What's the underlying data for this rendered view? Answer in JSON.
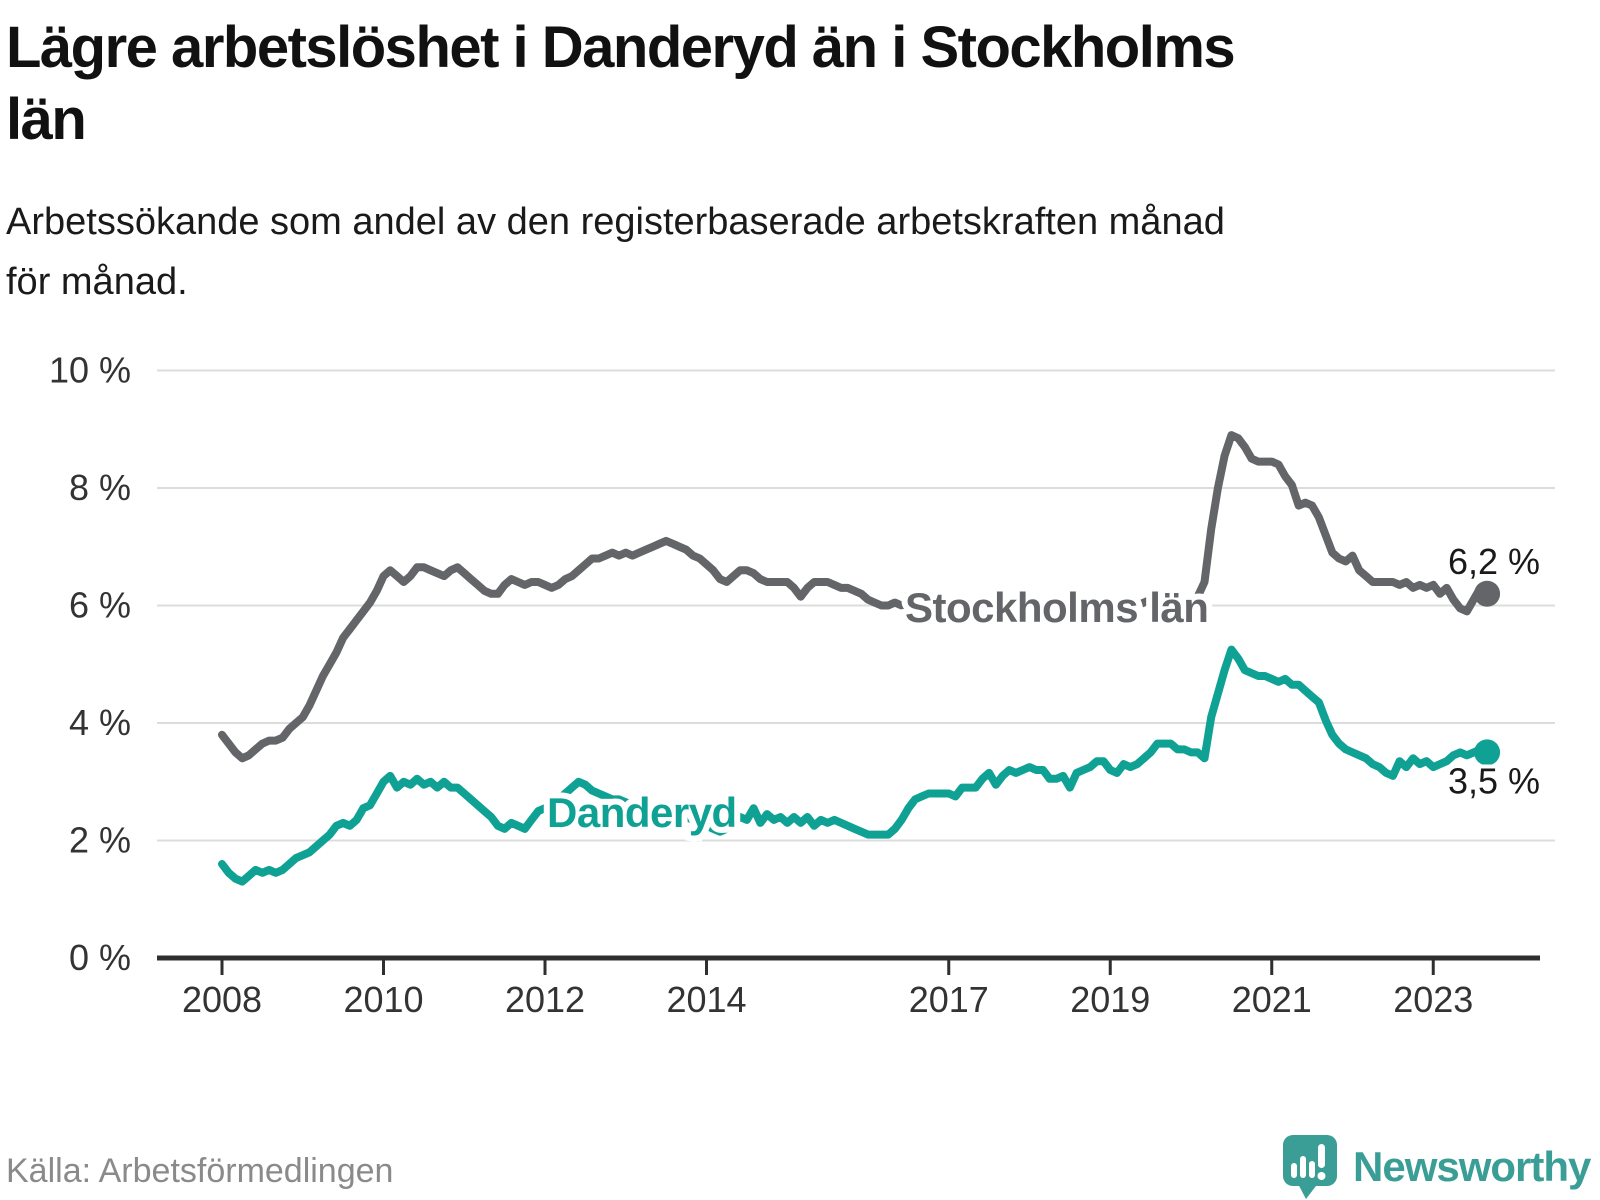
{
  "title": "Lägre arbetslöshet i Danderyd än i Stockholms\nlän",
  "subtitle": "Arbetssökande som andel av den registerbaserade arbetskraften månad\nför månad.",
  "source": "Källa: Arbetsförmedlingen",
  "brand": {
    "name": "Newsworthy",
    "icon": "speech-bubble-bar-chart-icon",
    "color": "#3a9e96"
  },
  "colors": {
    "stockholm_gray": "#636569",
    "danderyd_teal": "#10a195",
    "grid": "#dcdcdc",
    "axis": "#2f2f2f",
    "tick_text": "#333333",
    "value_text": "#1a1a1a",
    "source_gray": "#8a8a8a",
    "brand_teal": "#3a9e96"
  },
  "chart_data": {
    "type": "line",
    "title": "Lägre arbetslöshet i Danderyd än i Stockholms län",
    "subtitle": "Arbetssökande som andel av den registerbaserade arbetskraften månad för månad.",
    "xlabel": "",
    "ylabel": "",
    "y_suffix": " %",
    "ylim": [
      0,
      10
    ],
    "y_ticks": [
      0,
      2,
      4,
      6,
      8,
      10
    ],
    "x_ticks": [
      2008,
      2010,
      2012,
      2014,
      2017,
      2019,
      2021,
      2023
    ],
    "x_start_year": 2008,
    "x_start_month": 1,
    "freq": "monthly",
    "grid": "horizontal",
    "legend_position": "inline-labels",
    "series": [
      {
        "name": "Stockholms län",
        "color": "#636569",
        "end_label": "6,2 %",
        "end_value": 6.2,
        "values": [
          3.8,
          3.65,
          3.5,
          3.4,
          3.45,
          3.55,
          3.65,
          3.7,
          3.7,
          3.75,
          3.9,
          4.0,
          4.1,
          4.3,
          4.55,
          4.8,
          5.0,
          5.2,
          5.45,
          5.6,
          5.75,
          5.9,
          6.05,
          6.25,
          6.5,
          6.6,
          6.5,
          6.4,
          6.5,
          6.65,
          6.65,
          6.6,
          6.55,
          6.5,
          6.6,
          6.65,
          6.55,
          6.45,
          6.35,
          6.25,
          6.2,
          6.2,
          6.35,
          6.45,
          6.4,
          6.35,
          6.4,
          6.4,
          6.35,
          6.3,
          6.35,
          6.45,
          6.5,
          6.6,
          6.7,
          6.8,
          6.8,
          6.85,
          6.9,
          6.85,
          6.9,
          6.85,
          6.9,
          6.95,
          7.0,
          7.05,
          7.1,
          7.05,
          7.0,
          6.95,
          6.85,
          6.8,
          6.7,
          6.6,
          6.45,
          6.4,
          6.5,
          6.6,
          6.6,
          6.55,
          6.45,
          6.4,
          6.4,
          6.4,
          6.4,
          6.3,
          6.15,
          6.3,
          6.4,
          6.4,
          6.4,
          6.35,
          6.3,
          6.3,
          6.25,
          6.2,
          6.1,
          6.05,
          6.0,
          6.0,
          6.05,
          6.0,
          6.0,
          5.95,
          5.95,
          5.95,
          6.0,
          6.0,
          6.0,
          6.0,
          6.0,
          5.95,
          5.95,
          5.95,
          6.0,
          6.0,
          6.0,
          6.0,
          6.0,
          6.05,
          6.05,
          6.0,
          6.0,
          5.95,
          5.9,
          5.9,
          5.95,
          5.95,
          5.9,
          5.9,
          5.9,
          5.95,
          5.95,
          5.95,
          6.0,
          6.0,
          6.0,
          6.05,
          6.1,
          6.1,
          6.1,
          6.1,
          6.1,
          6.1,
          6.1,
          6.15,
          6.4,
          7.3,
          8.0,
          8.55,
          8.9,
          8.85,
          8.7,
          8.5,
          8.45,
          8.45,
          8.45,
          8.4,
          8.2,
          8.05,
          7.7,
          7.75,
          7.7,
          7.5,
          7.2,
          6.9,
          6.8,
          6.75,
          6.85,
          6.6,
          6.5,
          6.4,
          6.4,
          6.4,
          6.4,
          6.35,
          6.4,
          6.3,
          6.35,
          6.3,
          6.35,
          6.2,
          6.3,
          6.1,
          5.95,
          5.9,
          6.1,
          6.3,
          6.2
        ]
      },
      {
        "name": "Danderyd",
        "color": "#10a195",
        "end_label": "3,5 %",
        "end_value": 3.5,
        "values": [
          1.6,
          1.45,
          1.35,
          1.3,
          1.4,
          1.5,
          1.45,
          1.5,
          1.45,
          1.5,
          1.6,
          1.7,
          1.75,
          1.8,
          1.9,
          2.0,
          2.1,
          2.25,
          2.3,
          2.25,
          2.35,
          2.55,
          2.6,
          2.8,
          3.0,
          3.1,
          2.9,
          3.0,
          2.95,
          3.05,
          2.95,
          3.0,
          2.9,
          3.0,
          2.9,
          2.9,
          2.8,
          2.7,
          2.6,
          2.5,
          2.4,
          2.25,
          2.2,
          2.3,
          2.25,
          2.2,
          2.35,
          2.5,
          2.55,
          2.6,
          2.7,
          2.8,
          2.9,
          3.0,
          2.95,
          2.85,
          2.8,
          2.75,
          2.7,
          2.7,
          2.65,
          2.6,
          2.6,
          2.55,
          2.55,
          2.5,
          2.5,
          2.45,
          2.45,
          2.4,
          2.35,
          2.3,
          2.25,
          2.2,
          2.15,
          2.2,
          2.3,
          2.4,
          2.35,
          2.55,
          2.3,
          2.45,
          2.35,
          2.4,
          2.3,
          2.4,
          2.3,
          2.4,
          2.25,
          2.35,
          2.3,
          2.35,
          2.3,
          2.25,
          2.2,
          2.15,
          2.1,
          2.1,
          2.1,
          2.1,
          2.2,
          2.35,
          2.55,
          2.7,
          2.75,
          2.8,
          2.8,
          2.8,
          2.8,
          2.75,
          2.9,
          2.9,
          2.9,
          3.05,
          3.15,
          2.95,
          3.1,
          3.2,
          3.15,
          3.2,
          3.25,
          3.2,
          3.2,
          3.05,
          3.05,
          3.1,
          2.9,
          3.15,
          3.2,
          3.25,
          3.35,
          3.35,
          3.2,
          3.15,
          3.3,
          3.25,
          3.3,
          3.4,
          3.5,
          3.65,
          3.65,
          3.65,
          3.55,
          3.55,
          3.5,
          3.5,
          3.4,
          4.1,
          4.5,
          4.9,
          5.25,
          5.1,
          4.9,
          4.85,
          4.8,
          4.8,
          4.75,
          4.7,
          4.75,
          4.65,
          4.65,
          4.55,
          4.45,
          4.35,
          4.05,
          3.8,
          3.65,
          3.55,
          3.5,
          3.45,
          3.4,
          3.3,
          3.25,
          3.15,
          3.1,
          3.35,
          3.25,
          3.4,
          3.3,
          3.35,
          3.25,
          3.3,
          3.35,
          3.45,
          3.5,
          3.45,
          3.5,
          3.55,
          3.5
        ]
      }
    ]
  }
}
